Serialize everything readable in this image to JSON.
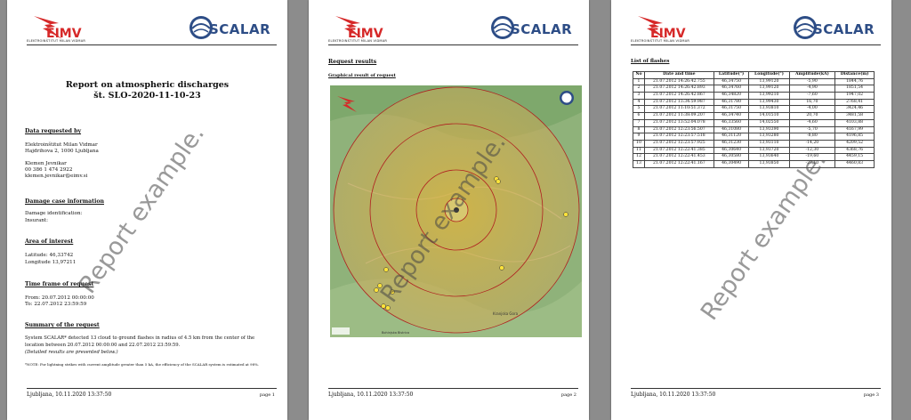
{
  "header": {
    "eimv_logo_text": "EIMV",
    "eimv_subtitle": "ELEKTROINŠTITUT MILAN VIDMAR",
    "scalar_logo_text": "SCALAR"
  },
  "watermark": "Report example.",
  "footer": {
    "date": "Ljubljana, 10.11.2020 13:37:50"
  },
  "page1": {
    "title_line1": "Report on atmospheric discharges",
    "title_line2": "št. SLO-2020-11-10-23",
    "sections": {
      "requested_by": {
        "heading": "Data requested by",
        "org": "Elektroinštitut Milan Vidmar",
        "address": "Hajdrihova 2, 1000 Ljubljana",
        "name": "Klemen Jevnikar",
        "phone": "00 386 1 474 2922",
        "email": "klemen.jevnikar@eimv.si"
      },
      "damage": {
        "heading": "Damage case information",
        "identification": "Damage identification:",
        "insurant": "Insurant:"
      },
      "area": {
        "heading": "Area of interest",
        "latitude": "Latitude: 46,33742",
        "longitude": "Longitude 13,97211"
      },
      "timeframe": {
        "heading": "Time frame of request",
        "from": "From: 20.07.2012 00:00:00",
        "to": "To: 22.07.2012 23:59:59"
      },
      "summary": {
        "heading": "Summary of the request",
        "line1": "System SCALAR* detected 13 cloud to ground flashes in radius of 4.5 km from the center of the",
        "line2": "location between 20.07.2012 00:00:00 and 22.07.2012 23:59:59.",
        "line3": "(Detailed results are presented below.)",
        "note": "*NOTE: For lightning strikes with current amplitude greater than 5 kA, the efficiency of the SCALAR system is estimated at 98%."
      }
    },
    "page_num": "page 1"
  },
  "page2": {
    "heading": "Request results",
    "subheading": "Graphical result of request",
    "page_num": "page 2",
    "map_labels": {
      "town": "Kranjska Gora",
      "badge": "Bohinjska Bistrica"
    }
  },
  "page3": {
    "heading": "List of flashes",
    "page_num": "page 3",
    "columns": [
      "No",
      "Date and time",
      "Latitude(°)",
      "Longitude(°)",
      "Amplitude(kA)",
      "Distance(m)"
    ],
    "rows": [
      [
        "1",
        "21.07.2012 14:26:42.755",
        "46,34750",
        "13,99120",
        "-5,90",
        "1844,76"
      ],
      [
        "2",
        "21.07.2012 14:26:42.893",
        "46,34760",
        "13,99120",
        "-4,90",
        "1851,54"
      ],
      [
        "3",
        "21.07.2012 14:26:42.867",
        "46,34820",
        "13,99210",
        "-7,60",
        "1947,02"
      ],
      [
        "4",
        "21.07.2012 13:34:59.987",
        "46,31780",
        "13,99430",
        "16,70",
        "2768,41"
      ],
      [
        "5",
        "21.07.2012 11:10:51.372",
        "46,31750",
        "13,93810",
        "-4,00",
        "3424,46"
      ],
      [
        "6",
        "21.07.2012 11:38:09.207",
        "46,34740",
        "14,01510",
        "20,70",
        "3481,58"
      ],
      [
        "7",
        "21.07.2012 13:52:04.078",
        "46,33560",
        "14,02550",
        "-4,60",
        "4103,88"
      ],
      [
        "8",
        "21.07.2012 12:23:56.507",
        "46,31080",
        "13,93390",
        "-5,70",
        "4167,99"
      ],
      [
        "9",
        "21.07.2012 12:23:57.518",
        "46,31120",
        "13,93280",
        "-8,80",
        "4196,85"
      ],
      [
        "10",
        "21.07.2012 12:23:57.925",
        "46,31230",
        "13,93110",
        "-14,20",
        "4209,52"
      ],
      [
        "11",
        "21.07.2012 12:22:41.385",
        "46,30640",
        "13,93720",
        "-12,30",
        "4368,76"
      ],
      [
        "12",
        "21.07.2012 12:22:41.453",
        "46,30580",
        "13,93640",
        "-19,60",
        "4459,15"
      ],
      [
        "13",
        "21.07.2012 12:22:41.167",
        "46,30490",
        "13,93850",
        "-27,10",
        "4460,83"
      ]
    ]
  }
}
